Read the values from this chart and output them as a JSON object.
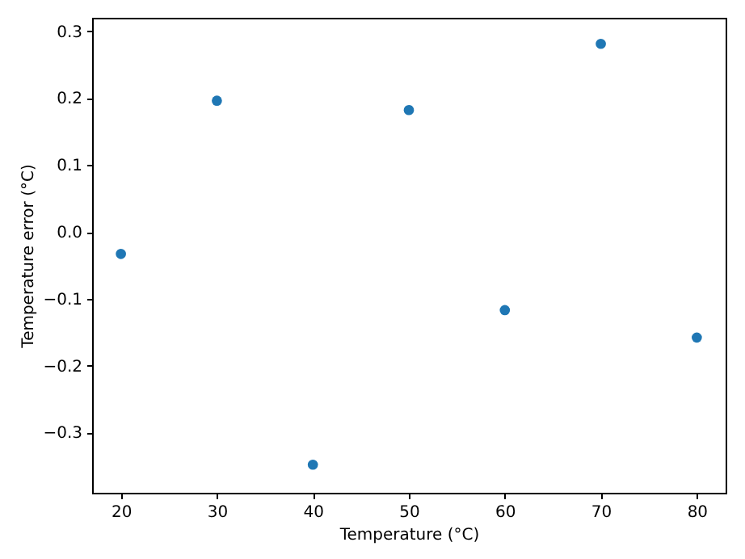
{
  "chart_data": {
    "type": "scatter",
    "xlabel": "Temperature (°C)",
    "ylabel": "Temperature error (°C)",
    "x": [
      20,
      30,
      40,
      50,
      60,
      70,
      80
    ],
    "series": [
      {
        "color": "#1f77b4",
        "values": [
          -0.033,
          0.196,
          -0.348,
          0.182,
          -0.117,
          0.281,
          -0.158
        ]
      }
    ],
    "xlim": [
      17,
      83
    ],
    "xticks": [
      20,
      30,
      40,
      50,
      60,
      70,
      80
    ],
    "ylim": [
      -0.39,
      0.32
    ],
    "yticks": [
      -0.3,
      -0.2,
      -0.1,
      {
        "value": 0,
        "label": "0.0"
      },
      0.1,
      0.2,
      0.3
    ],
    "marker": "circle",
    "grid": false
  }
}
